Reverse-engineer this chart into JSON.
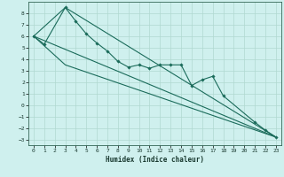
{
  "xlabel": "Humidex (Indice chaleur)",
  "background_color": "#cff0ee",
  "grid_color": "#b0d8d0",
  "line_color": "#1a6b5a",
  "xlim": [
    -0.5,
    23.5
  ],
  "ylim": [
    -3.5,
    9.0
  ],
  "xticks": [
    0,
    1,
    2,
    3,
    4,
    5,
    6,
    7,
    8,
    9,
    10,
    11,
    12,
    13,
    14,
    15,
    16,
    17,
    18,
    19,
    20,
    21,
    22,
    23
  ],
  "yticks": [
    -3,
    -2,
    -1,
    0,
    1,
    2,
    3,
    4,
    5,
    6,
    7,
    8
  ],
  "series_main": {
    "x": [
      0,
      1,
      3,
      4,
      5,
      6,
      7,
      8,
      9,
      10,
      11,
      12,
      13,
      14,
      15,
      16,
      17,
      18,
      21,
      22,
      23
    ],
    "y": [
      6.0,
      5.3,
      8.5,
      7.3,
      6.2,
      5.4,
      4.7,
      3.8,
      3.3,
      3.5,
      3.2,
      3.5,
      3.5,
      3.5,
      1.7,
      2.2,
      2.5,
      0.8,
      -1.5,
      -2.2,
      -2.8
    ]
  },
  "series_line1": {
    "x": [
      0,
      23
    ],
    "y": [
      6.0,
      -2.8
    ]
  },
  "series_line2": {
    "x": [
      0,
      3,
      23
    ],
    "y": [
      6.0,
      3.5,
      -2.8
    ]
  },
  "series_line3": {
    "x": [
      0,
      3,
      23
    ],
    "y": [
      6.0,
      8.5,
      -2.8
    ]
  }
}
